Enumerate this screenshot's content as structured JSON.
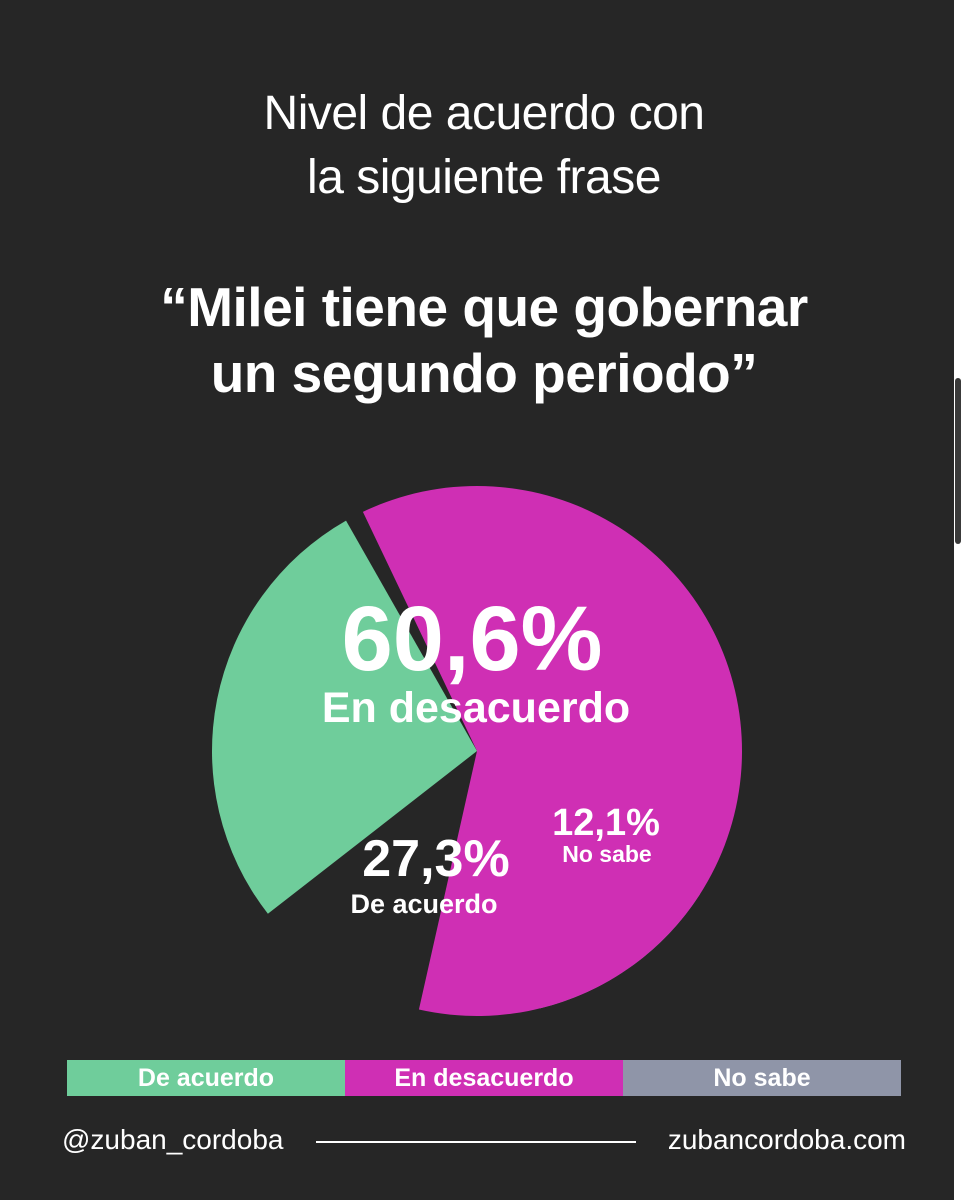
{
  "title_lines": [
    "Nivel de acuerdo con",
    "la siguiente frase"
  ],
  "quote_lines": [
    "“Milei tiene que gobernar",
    "un segundo periodo”"
  ],
  "chart_data": {
    "type": "pie",
    "slices": [
      {
        "label": "En desacuerdo",
        "value": 60.6,
        "value_text": "60,6%",
        "color": "#cf2fb4"
      },
      {
        "label": "De acuerdo",
        "value": 27.3,
        "value_text": "27,3%",
        "color": "#6fcd9b"
      },
      {
        "label": "No sabe",
        "value": 12.1,
        "value_text": "12,1%",
        "color": "#8f95a8"
      }
    ],
    "legend": [
      {
        "label": "De acuerdo",
        "color": "#6fcd9b"
      },
      {
        "label": "En desacuerdo",
        "color": "#cf2fb4"
      },
      {
        "label": "No sabe",
        "color": "#8f95a8"
      }
    ],
    "legend_position": "bottom"
  },
  "footer": {
    "handle": "@zuban_cordoba",
    "website": "zubancordoba.com"
  },
  "colors": {
    "background": "#262626",
    "text": "#ffffff"
  }
}
